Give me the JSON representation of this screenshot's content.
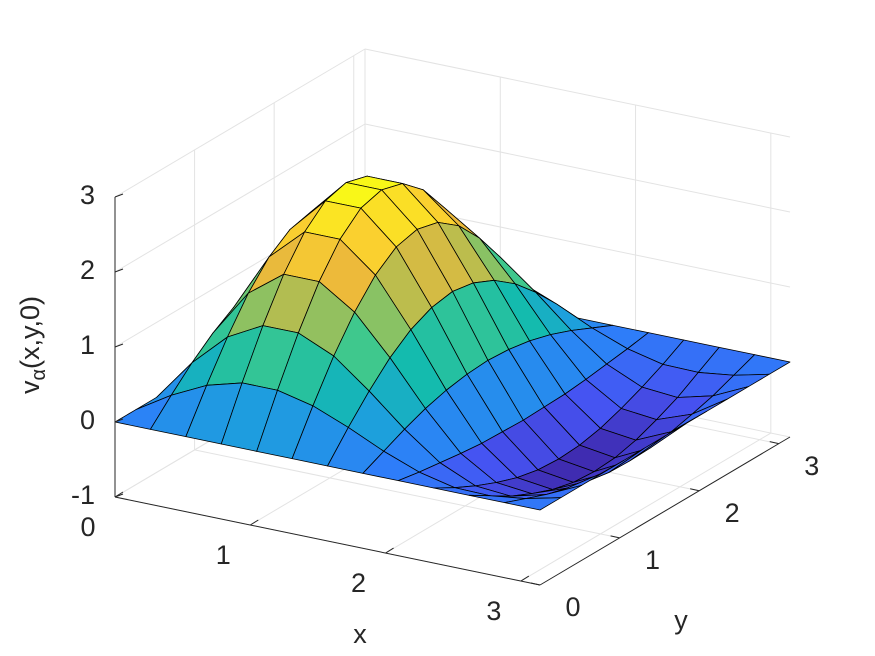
{
  "chart_data": {
    "type": "surface",
    "xlabel": "x",
    "ylabel": "y",
    "zlabel": [
      "v",
      "α",
      "(x,y,0)"
    ],
    "x": [
      0,
      0.2618,
      0.5236,
      0.7854,
      1.0472,
      1.309,
      1.5708,
      1.8326,
      2.0944,
      2.3562,
      2.618,
      2.8798,
      3.1416
    ],
    "y": [
      0,
      0.2618,
      0.5236,
      0.7854,
      1.0472,
      1.309,
      1.5708,
      1.8326,
      2.0944,
      2.3562,
      2.618,
      2.8798,
      3.1416
    ],
    "z": [
      [
        0,
        0,
        0,
        0,
        0,
        0,
        0,
        0,
        0,
        0,
        0,
        0,
        0
      ],
      [
        0,
        0.29,
        0.52,
        0.65,
        0.65,
        0.54,
        0.35,
        0.13,
        -0.05,
        -0.16,
        -0.17,
        -0.11,
        0
      ],
      [
        0,
        0.56,
        1.0,
        1.25,
        1.25,
        1.04,
        0.67,
        0.26,
        -0.09,
        -0.3,
        -0.34,
        -0.22,
        0
      ],
      [
        0,
        0.79,
        1.42,
        1.77,
        1.77,
        1.46,
        0.95,
        0.37,
        -0.13,
        -0.42,
        -0.47,
        -0.3,
        0
      ],
      [
        0,
        0.97,
        1.74,
        2.17,
        2.17,
        1.79,
        1.16,
        0.45,
        -0.16,
        -0.52,
        -0.58,
        -0.37,
        0
      ],
      [
        0,
        1.08,
        1.94,
        2.42,
        2.42,
        2.0,
        1.29,
        0.5,
        -0.17,
        -0.58,
        -0.65,
        -0.42,
        0
      ],
      [
        0,
        1.12,
        2.01,
        2.5,
        2.5,
        2.07,
        1.34,
        0.52,
        -0.18,
        -0.6,
        -0.67,
        -0.43,
        0
      ],
      [
        0,
        1.08,
        1.94,
        2.42,
        2.42,
        2.0,
        1.29,
        0.5,
        -0.17,
        -0.58,
        -0.65,
        -0.42,
        0
      ],
      [
        0,
        0.97,
        1.74,
        2.17,
        2.17,
        1.79,
        1.16,
        0.45,
        -0.16,
        -0.52,
        -0.58,
        -0.37,
        0
      ],
      [
        0,
        0.79,
        1.42,
        1.77,
        1.77,
        1.46,
        0.95,
        0.37,
        -0.13,
        -0.42,
        -0.47,
        -0.3,
        0
      ],
      [
        0,
        0.56,
        1.0,
        1.25,
        1.25,
        1.04,
        0.67,
        0.26,
        -0.09,
        -0.3,
        -0.34,
        -0.22,
        0
      ],
      [
        0,
        0.29,
        0.52,
        0.65,
        0.65,
        0.54,
        0.35,
        0.13,
        -0.05,
        -0.16,
        -0.17,
        -0.11,
        0
      ],
      [
        0,
        0,
        0,
        0,
        0,
        0,
        0,
        0,
        0,
        0,
        0,
        0,
        0
      ]
    ],
    "xlim": [
      0,
      3.1416
    ],
    "ylim": [
      0,
      3.1416
    ],
    "zlim": [
      -1,
      3
    ],
    "xticks": [
      0,
      1,
      2,
      3
    ],
    "yticks": [
      0,
      1,
      2,
      3
    ],
    "zticks": [
      -1,
      0,
      1,
      2,
      3
    ],
    "grid": true,
    "colormap": [
      "#3e26a8",
      "#4653f2",
      "#2d7ff9",
      "#1ba3d9",
      "#14bbad",
      "#48cb86",
      "#a4be56",
      "#edba3a",
      "#fcd42d",
      "#f9fb15"
    ],
    "edge_color": "#000000"
  }
}
